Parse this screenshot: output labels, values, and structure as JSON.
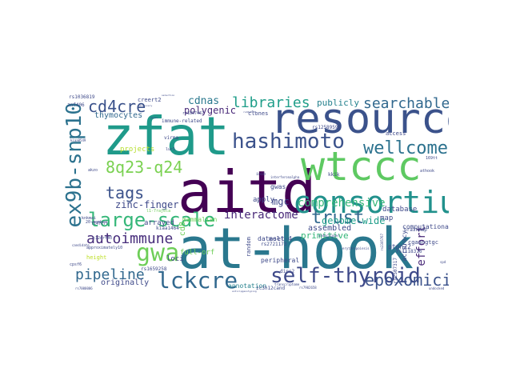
{
  "words": [
    {
      "text": "zfat",
      "color": "#1f9a8a"
    },
    {
      "text": "at-hook",
      "color": "#2a788e"
    },
    {
      "text": "aitd",
      "color": "#440154"
    },
    {
      "text": "resource",
      "color": "#3b528b"
    },
    {
      "text": "wtccc",
      "color": "#5ec962"
    },
    {
      "text": "consortium",
      "color": "#21918c"
    },
    {
      "text": "ex9b-snp10",
      "color": "#2c728e"
    },
    {
      "text": "hashimoto",
      "color": "#3b528b"
    },
    {
      "text": "wellcome",
      "color": "#2c728e"
    },
    {
      "text": "large-scale",
      "color": "#35b779"
    },
    {
      "text": "gwa",
      "color": "#6ece58"
    },
    {
      "text": "self-thyroid",
      "color": "#3e4989"
    },
    {
      "text": "lckcre",
      "color": "#31688e"
    },
    {
      "text": "epoxomicin",
      "color": "#3b528b"
    },
    {
      "text": "trust",
      "color": "#31688e"
    },
    {
      "text": "libraries",
      "color": "#1f9e89"
    },
    {
      "text": "searchable",
      "color": "#31688e"
    },
    {
      "text": "cd4cre",
      "color": "#3b528b"
    },
    {
      "text": "8q23-q24",
      "color": "#7ad151"
    },
    {
      "text": "tags",
      "color": "#3b528b"
    },
    {
      "text": "autoimmune",
      "color": "#472d7b"
    },
    {
      "text": "pipeline",
      "color": "#31688e"
    },
    {
      "text": "interactome",
      "color": "#482878"
    },
    {
      "text": "comprehensive",
      "color": "#35b779"
    },
    {
      "text": "genome-wide",
      "color": "#1f9e89"
    },
    {
      "text": "effort",
      "color": "#482878"
    },
    {
      "text": "cdnas",
      "color": "#2a788e"
    },
    {
      "text": "polygenic",
      "color": "#482878"
    },
    {
      "text": "publicly",
      "color": "#26828e"
    },
    {
      "text": "thymocytes",
      "color": "#31688e"
    },
    {
      "text": "zinc-finger",
      "color": "#3e4989"
    },
    {
      "text": "primitive",
      "color": "#35b779"
    },
    {
      "text": "assembled",
      "color": "#3e4989"
    },
    {
      "text": "originally",
      "color": "#3e4989"
    },
    {
      "text": "computational",
      "color": "#3e4989"
    },
    {
      "text": "database",
      "color": "#3e4989"
    },
    {
      "text": "accuracy",
      "color": "#3e4989"
    },
    {
      "text": "annotation",
      "color": "#26828e"
    },
    {
      "text": "mammalian",
      "color": "#6ece58"
    },
    {
      "text": "arrayed",
      "color": "#3e4989"
    },
    {
      "text": "projects",
      "color": "#b5de2b"
    },
    {
      "text": "loci",
      "color": "#3e4989"
    },
    {
      "text": "dataset",
      "color": "#3e4989"
    },
    {
      "text": "peripheral",
      "color": "#3e4989"
    },
    {
      "text": "map",
      "color": "#3e4989"
    },
    {
      "text": "mgc",
      "color": "#3e4989"
    },
    {
      "text": "apply",
      "color": "#3e4989"
    },
    {
      "text": "gwas",
      "color": "#3e4989"
    },
    {
      "text": "molt-4",
      "color": "#3e4989"
    },
    {
      "text": "height",
      "color": "#bddf26"
    },
    {
      "text": "full-orf",
      "color": "#6ece58"
    },
    {
      "text": "cd8",
      "color": "#6ece58"
    },
    {
      "text": "ptpn22",
      "color": "#3e4989"
    },
    {
      "text": "access",
      "color": "#3e4989"
    },
    {
      "text": "clones",
      "color": "#3e4989"
    },
    {
      "text": "creert2",
      "color": "#3e4989"
    },
    {
      "text": "immune-related",
      "color": "#3e4989"
    },
    {
      "text": "random",
      "color": "#3e4989"
    },
    {
      "text": "rs2721173",
      "color": "#3e4989"
    },
    {
      "text": "rs1659258",
      "color": "#3e4989"
    },
    {
      "text": "kiaa1464",
      "color": "#3e4989"
    },
    {
      "text": "dipc2",
      "color": "#3e4989"
    },
    {
      "text": "zc3h12cand",
      "color": "#3e4989"
    },
    {
      "text": "rs12589592",
      "color": "#3e4989"
    },
    {
      "text": "rs1118316",
      "color": "#3e4989"
    },
    {
      "text": "rs2507317",
      "color": "#3e4989"
    },
    {
      "text": "cgaangtgc",
      "color": "#3e4989"
    },
    {
      "text": "brainmap",
      "color": "#3e4989"
    },
    {
      "text": "rs1036819",
      "color": "#3e4989"
    },
    {
      "text": "kkik",
      "color": "#3e4989"
    },
    {
      "text": "virma",
      "color": "#3e4989"
    },
    {
      "text": "approximately10",
      "color": "#3e4989"
    },
    {
      "text": "znf406",
      "color": "#3e4989"
    },
    {
      "text": "akzo",
      "color": "#3e4989"
    },
    {
      "text": "knkmai",
      "color": "#3e4989"
    },
    {
      "text": "l147c7t",
      "color": "#3e4989"
    },
    {
      "text": "c12orf40",
      "color": "#3e4989"
    },
    {
      "text": "l1-7rajbla",
      "color": "#6ece58"
    },
    {
      "text": "20-member",
      "color": "#3e4989"
    },
    {
      "text": "rs1807467",
      "color": "#3e4989"
    },
    {
      "text": "interferonalpha",
      "color": "#3e4989"
    },
    {
      "text": "lur1",
      "color": "#3e4989"
    },
    {
      "text": "inib",
      "color": "#3e4989"
    },
    {
      "text": "athook",
      "color": "#3e4989"
    },
    {
      "text": "169tt",
      "color": "#3e4989"
    },
    {
      "text": "rs7902658",
      "color": "#3e4989"
    },
    {
      "text": "rs2305767",
      "color": "#3e4989"
    },
    {
      "text": "cpsf6",
      "color": "#3e4989"
    },
    {
      "text": "rs7000006",
      "color": "#3e4989"
    },
    {
      "text": "anticipgenotyping",
      "color": "#3e4989"
    },
    {
      "text": "transcriptome",
      "color": "#3e4989"
    },
    {
      "text": "undocked",
      "color": "#3e4989"
    },
    {
      "text": "kiaa0549",
      "color": "#3e4989"
    },
    {
      "text": "candidate",
      "color": "#3e4989"
    },
    {
      "text": "selection",
      "color": "#3e4989"
    },
    {
      "text": "discovery",
      "color": "#3e4989"
    },
    {
      "text": "erythropoiesis",
      "color": "#3e4989"
    },
    {
      "text": "rs1010436",
      "color": "#3e4989"
    },
    {
      "text": "underlinger",
      "color": "#3e4989"
    },
    {
      "text": "spd",
      "color": "#3e4989"
    },
    {
      "text": "genes",
      "color": "#3e4989"
    }
  ]
}
